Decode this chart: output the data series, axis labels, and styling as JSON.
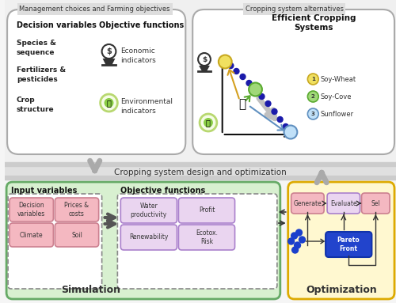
{
  "bg_color": "#f5f5f5",
  "title_top_left": "Management choices and Farming objectives",
  "title_top_right": "Cropping system alternatives",
  "label_decision_vars": "Decision variables",
  "label_obj_funcs": "Objective functions",
  "label_species": "Species &\nsequence",
  "label_fertilizers": "Fertilizers &\npesticides",
  "label_crop_struct": "Crop\nstructure",
  "label_economic": "Economic\nindicators",
  "label_environmental": "Environmental\nindicators",
  "label_efficient": "Efficient Cropping\nSystems",
  "label_legend1": "Soy-Wheat",
  "label_legend2": "Soy-Cove",
  "label_legend3": "Sunflower",
  "label_middle_banner": "Cropping system design and optimization",
  "label_input_vars": "Input variables",
  "label_obj_funcs2": "Objective functions",
  "label_simulation": "Simulation",
  "label_optimization": "Optimization",
  "label_prices": "Prices &\ncosts",
  "label_soil": "Soil",
  "label_water_prod": "Water\nproductivity",
  "label_profit": "Profit",
  "label_renewability": "Renewability",
  "label_ecotox": "Ecotox.\nRisk",
  "label_generate": "Generate",
  "label_evaluate": "Evaluate",
  "label_select": "Sel",
  "label_pareto": "Pareto\nFront",
  "label_decision_var2": "Decision\nvariables",
  "label_climate": "Climate"
}
